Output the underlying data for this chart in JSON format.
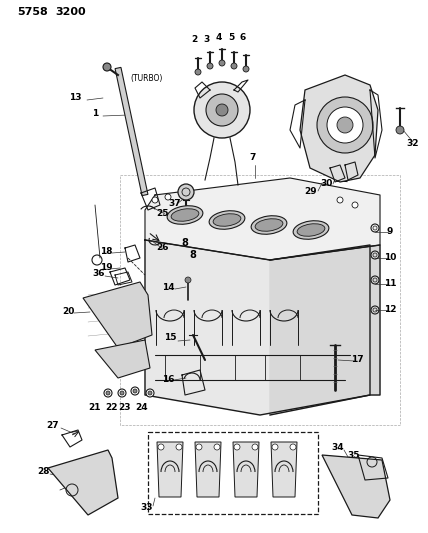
{
  "bg_color": "#ffffff",
  "line_color": "#1a1a1a",
  "fig_width": 4.28,
  "fig_height": 5.33,
  "dpi": 100,
  "title1": "5758",
  "title2": "3200"
}
